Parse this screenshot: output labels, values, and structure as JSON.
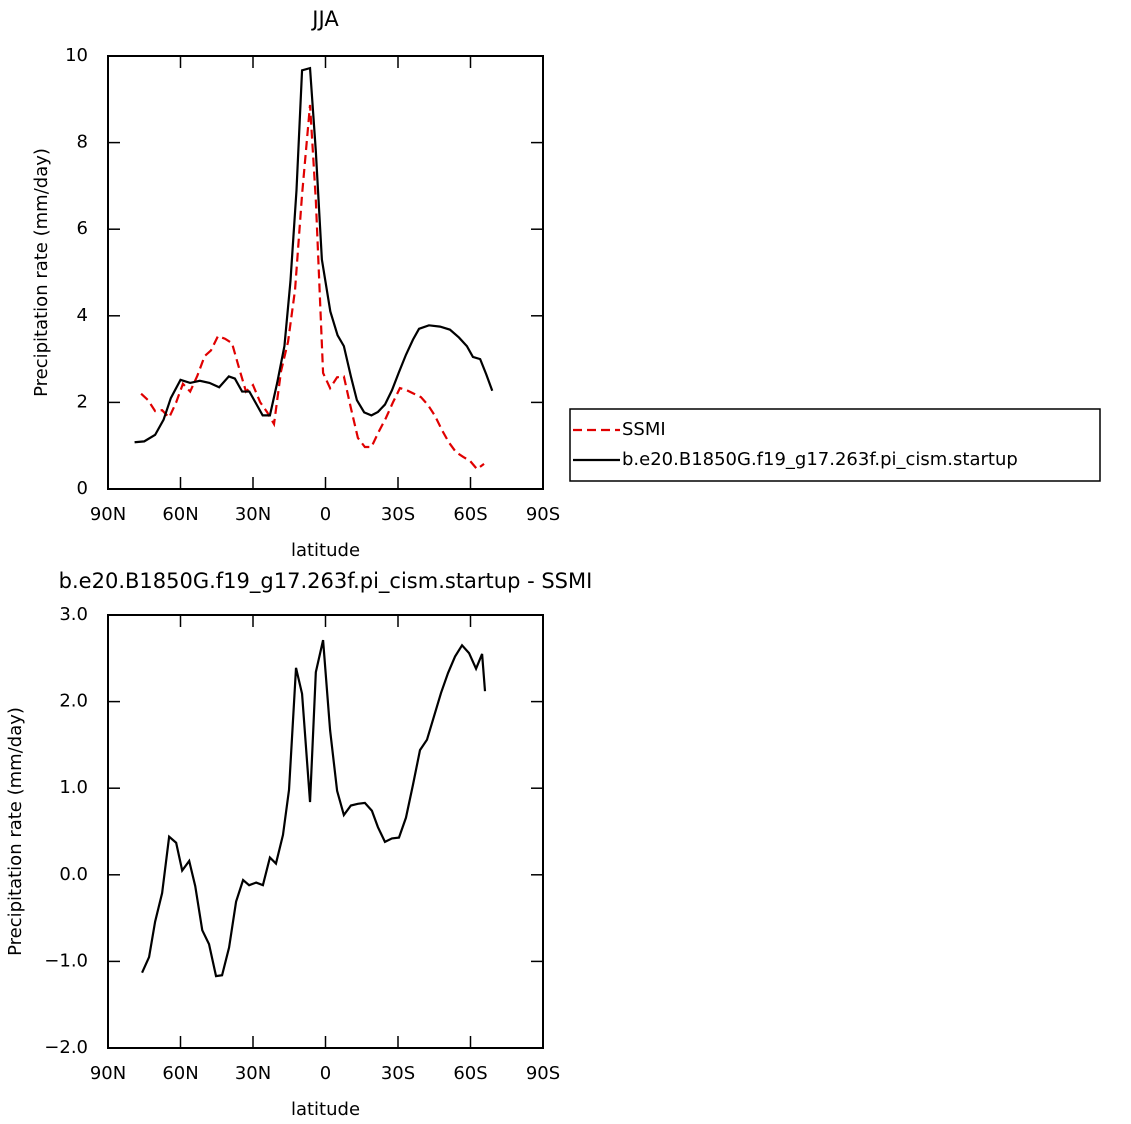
{
  "chart_data": [
    {
      "type": "line",
      "title": "JJA",
      "xlabel": "latitude",
      "ylabel": "Precipitation rate (mm/day)",
      "xlim": [
        90,
        -90
      ],
      "ylim": [
        0,
        10
      ],
      "xticks": [
        {
          "value": 90,
          "label": "90N"
        },
        {
          "value": 60,
          "label": "60N"
        },
        {
          "value": 30,
          "label": "30N"
        },
        0,
        {
          "value": -30,
          "label": "30S"
        },
        {
          "value": -60,
          "label": "60S"
        },
        {
          "value": -90,
          "label": "90S"
        }
      ],
      "yticks": [
        0,
        2,
        4,
        6,
        8,
        10
      ],
      "legend": "right",
      "series": [
        {
          "name": "SSMI",
          "color": "#e00000",
          "linestyle": "dashed",
          "x": [
            76.3,
            73.4,
            70.5,
            67.6,
            64.7,
            61.8,
            59,
            56,
            53,
            50,
            47.4,
            44.5,
            41.6,
            38.7,
            35.8,
            32.9,
            30,
            27,
            24.2,
            21.3,
            18.4,
            15.5,
            12.6,
            9.7,
            6.4,
            4,
            1,
            -1.9,
            -4.8,
            -7.6,
            -10.5,
            -13.4,
            -16.3,
            -19,
            -22,
            -25,
            -27.9,
            -30.8,
            -33.7,
            -36.6,
            -39.5,
            -42.4,
            -45.3,
            -48.2,
            -51,
            -54,
            -57,
            -59.8,
            -62.7,
            -65.6
          ],
          "values": [
            2.2,
            2.05,
            1.8,
            1.82,
            1.65,
            2.0,
            2.43,
            2.25,
            2.62,
            3.07,
            3.2,
            3.53,
            3.47,
            3.37,
            2.8,
            2.25,
            2.4,
            2.0,
            1.78,
            1.5,
            2.72,
            3.4,
            4.6,
            6.8,
            8.87,
            6.67,
            2.68,
            2.33,
            2.58,
            2.6,
            1.87,
            1.18,
            0.97,
            0.97,
            1.32,
            1.64,
            2.0,
            2.33,
            2.28,
            2.2,
            2.12,
            1.94,
            1.69,
            1.36,
            1.08,
            0.85,
            0.74,
            0.65,
            0.46,
            0.58
          ]
        },
        {
          "name": "b.e20.B1850G.f19_g17.263f.pi_cism.startup",
          "color": "#000000",
          "linestyle": "solid",
          "x": [
            79,
            75,
            70.5,
            67,
            64,
            60,
            56,
            52,
            48,
            44,
            40,
            37.5,
            34.5,
            31.5,
            29,
            26,
            23,
            20,
            17,
            14.5,
            12,
            9.7,
            6.4,
            4,
            1.5,
            -2,
            -5,
            -7.6,
            -10.5,
            -13,
            -16,
            -19,
            -21.7,
            -24.6,
            -27.5,
            -30.4,
            -33.3,
            -36.2,
            -38.7,
            -42.8,
            -47.4,
            -51.5,
            -55.2,
            -58.5,
            -61,
            -64,
            -66.5,
            -69
          ],
          "values": [
            1.08,
            1.1,
            1.25,
            1.6,
            2.1,
            2.52,
            2.45,
            2.5,
            2.45,
            2.35,
            2.6,
            2.55,
            2.25,
            2.25,
            2.0,
            1.7,
            1.7,
            2.45,
            3.3,
            4.8,
            6.9,
            9.67,
            9.72,
            7.8,
            5.3,
            4.1,
            3.55,
            3.3,
            2.6,
            2.05,
            1.77,
            1.7,
            1.78,
            1.95,
            2.28,
            2.7,
            3.1,
            3.45,
            3.7,
            3.78,
            3.75,
            3.68,
            3.5,
            3.3,
            3.05,
            3.0,
            2.65,
            2.27
          ]
        }
      ]
    },
    {
      "type": "line",
      "title": "b.e20.B1850G.f19_g17.263f.pi_cism.startup - SSMI",
      "xlabel": "latitude",
      "ylabel": "Precipitation rate (mm/day)",
      "xlim": [
        90,
        -90
      ],
      "ylim": [
        -2,
        3
      ],
      "xticks": [
        {
          "value": 90,
          "label": "90N"
        },
        {
          "value": 60,
          "label": "60N"
        },
        {
          "value": 30,
          "label": "30N"
        },
        0,
        {
          "value": -30,
          "label": "30S"
        },
        {
          "value": -60,
          "label": "60S"
        },
        {
          "value": -90,
          "label": "90S"
        }
      ],
      "yticks": [
        {
          "value": -2,
          "label": "−2.0"
        },
        {
          "value": -1,
          "label": "−1.0"
        },
        {
          "value": 0,
          "label": "0.0"
        },
        {
          "value": 1,
          "label": "1.0"
        },
        {
          "value": 2,
          "label": "2.0"
        },
        {
          "value": 3,
          "label": "3.0"
        }
      ],
      "series": [
        {
          "color": "#000000",
          "linestyle": "solid",
          "x": [
            75.9,
            73,
            70.5,
            67.6,
            64.7,
            61.8,
            59.3,
            56.4,
            53.9,
            51,
            48.2,
            45.3,
            42.8,
            39.9,
            37,
            34.1,
            31.6,
            28.7,
            25.9,
            23,
            20.5,
            17.6,
            15.1,
            12.2,
            9.7,
            6.4,
            4,
            1,
            -1.9,
            -4.8,
            -7.6,
            -10.5,
            -13.4,
            -16.3,
            -19.2,
            -21.7,
            -24.6,
            -27.5,
            -30.4,
            -33.3,
            -36.2,
            -39.1,
            -42,
            -44.9,
            -47.8,
            -50.7,
            -53.6,
            -56.5,
            -59.4,
            -62.3,
            -64.8,
            -66
          ],
          "values": [
            -1.13,
            -0.95,
            -0.54,
            -0.21,
            0.44,
            0.37,
            0.05,
            0.16,
            -0.13,
            -0.64,
            -0.8,
            -1.17,
            -1.16,
            -0.84,
            -0.31,
            -0.06,
            -0.12,
            -0.09,
            -0.12,
            0.2,
            0.13,
            0.46,
            0.98,
            2.39,
            2.09,
            0.84,
            2.34,
            2.71,
            1.67,
            0.97,
            0.69,
            0.8,
            0.82,
            0.83,
            0.74,
            0.55,
            0.38,
            0.42,
            0.43,
            0.66,
            1.04,
            1.44,
            1.56,
            1.83,
            2.1,
            2.33,
            2.52,
            2.65,
            2.56,
            2.38,
            2.55,
            2.12
          ]
        }
      ]
    }
  ]
}
